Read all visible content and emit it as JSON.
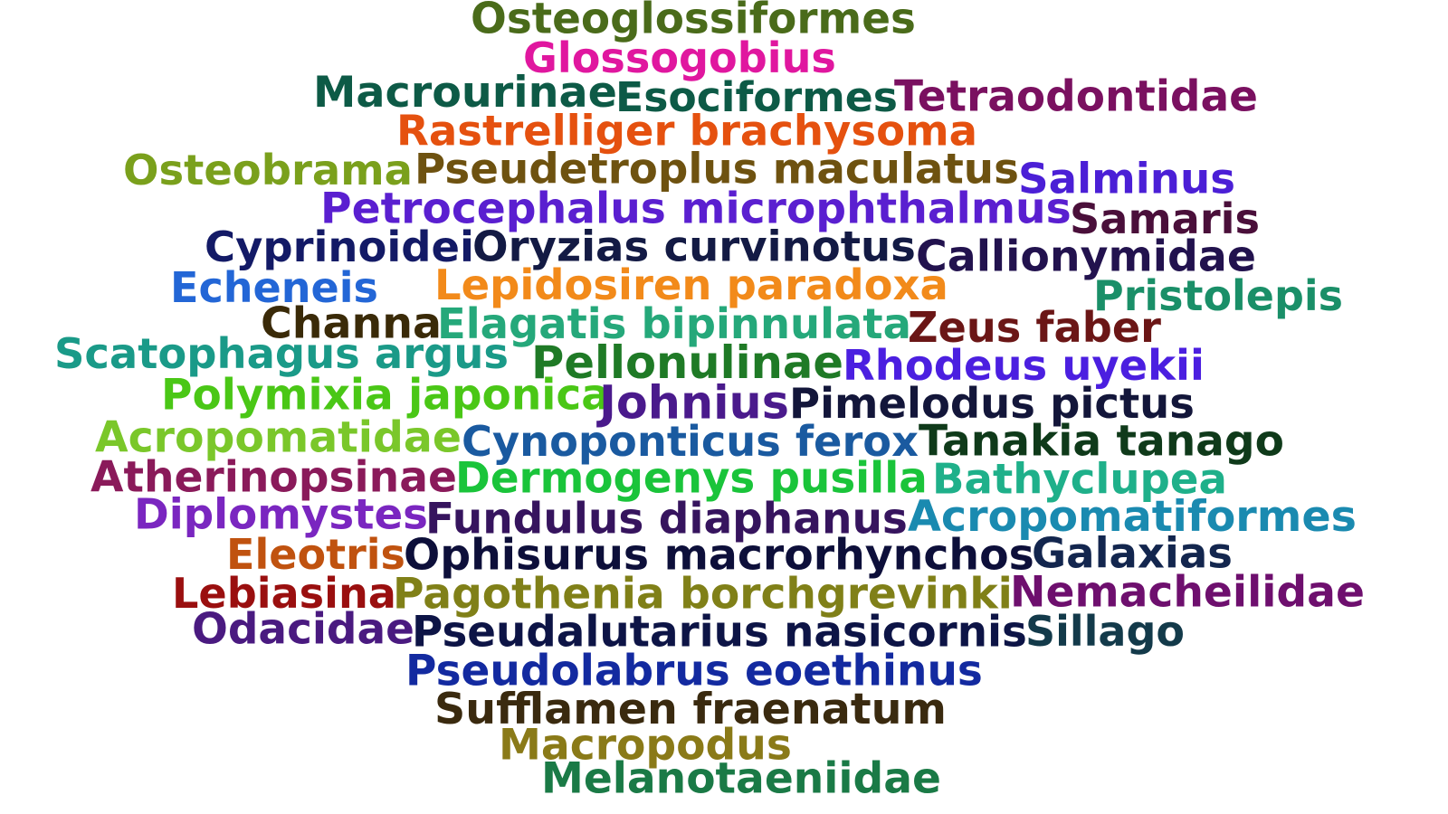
{
  "words": [
    {
      "text": "Osteoglossiformes",
      "color": "#4a6b1a"
    },
    {
      "text": "Glossogobius",
      "color": "#e0179f"
    },
    {
      "text": "Macrourinae",
      "color": "#0d5a46"
    },
    {
      "text": "Esociformes",
      "color": "#0d5a46"
    },
    {
      "text": "Tetraodontidae",
      "color": "#7a1060"
    },
    {
      "text": "Rastrelliger brachysoma",
      "color": "#e5510f"
    },
    {
      "text": "Osteobrama",
      "color": "#7aa01c"
    },
    {
      "text": "Pseudetroplus maculatus",
      "color": "#6e5210"
    },
    {
      "text": "Salminus",
      "color": "#4b1fd6"
    },
    {
      "text": "Petrocephalus microphthalmus",
      "color": "#5a1fd0"
    },
    {
      "text": "Samaris",
      "color": "#4a0f3a"
    },
    {
      "text": "Cyprinoidei",
      "color": "#131a66"
    },
    {
      "text": "Oryzias curvinotus",
      "color": "#131a44"
    },
    {
      "text": "Callionymidae",
      "color": "#22124e"
    },
    {
      "text": "Echeneis",
      "color": "#2366d6"
    },
    {
      "text": "Lepidosiren paradoxa",
      "color": "#f28a1a"
    },
    {
      "text": "Pristolepis",
      "color": "#1a8f68"
    },
    {
      "text": "Channa",
      "color": "#3a2a08"
    },
    {
      "text": "Elagatis bipinnulata",
      "color": "#25a87a"
    },
    {
      "text": "Zeus faber",
      "color": "#6b1616"
    },
    {
      "text": "Scatophagus argus",
      "color": "#1a9a88"
    },
    {
      "text": "Pellonulinae",
      "color": "#1f7a26"
    },
    {
      "text": "Rhodeus uyekii",
      "color": "#4b1fe0"
    },
    {
      "text": "Polymixia japonica",
      "color": "#4ac716"
    },
    {
      "text": "Johnius",
      "color": "#4a1a8c"
    },
    {
      "text": "Pimelodus pictus",
      "color": "#13163a"
    },
    {
      "text": "Acropomatidae",
      "color": "#7ac72a"
    },
    {
      "text": "Cynoponticus ferox",
      "color": "#1a5aa0"
    },
    {
      "text": "Tanakia tanago",
      "color": "#0f3a1a"
    },
    {
      "text": "Atherinopsinae",
      "color": "#8a1a5a"
    },
    {
      "text": "Dermogenys pusilla",
      "color": "#1ac43a"
    },
    {
      "text": "Bathyclupea",
      "color": "#1fb08a"
    },
    {
      "text": "Diplomystes",
      "color": "#7a26c0"
    },
    {
      "text": "Fundulus diaphanus",
      "color": "#36145e"
    },
    {
      "text": "Acropomatiformes",
      "color": "#1a8ab0"
    },
    {
      "text": "Eleotris",
      "color": "#c0520f"
    },
    {
      "text": "Ophisurus macrorhynchos",
      "color": "#0d0f3a"
    },
    {
      "text": "Galaxias",
      "color": "#13264e"
    },
    {
      "text": "Lebiasina",
      "color": "#9a0f0f"
    },
    {
      "text": "Pagothenia borchgrevinki",
      "color": "#808018"
    },
    {
      "text": "Nemacheilidae",
      "color": "#6e0f6e"
    },
    {
      "text": "Odacidae",
      "color": "#4a1a80"
    },
    {
      "text": "Pseudalutarius nasicornis",
      "color": "#0d1446"
    },
    {
      "text": "Sillago",
      "color": "#133a4a"
    },
    {
      "text": "Pseudolabrus eoethinus",
      "color": "#132aa0"
    },
    {
      "text": "Sufflamen fraenatum",
      "color": "#3a2a0f"
    },
    {
      "text": "Macropodus",
      "color": "#8a7a18"
    },
    {
      "text": "Melanotaeniidae",
      "color": "#1a7a46"
    }
  ]
}
